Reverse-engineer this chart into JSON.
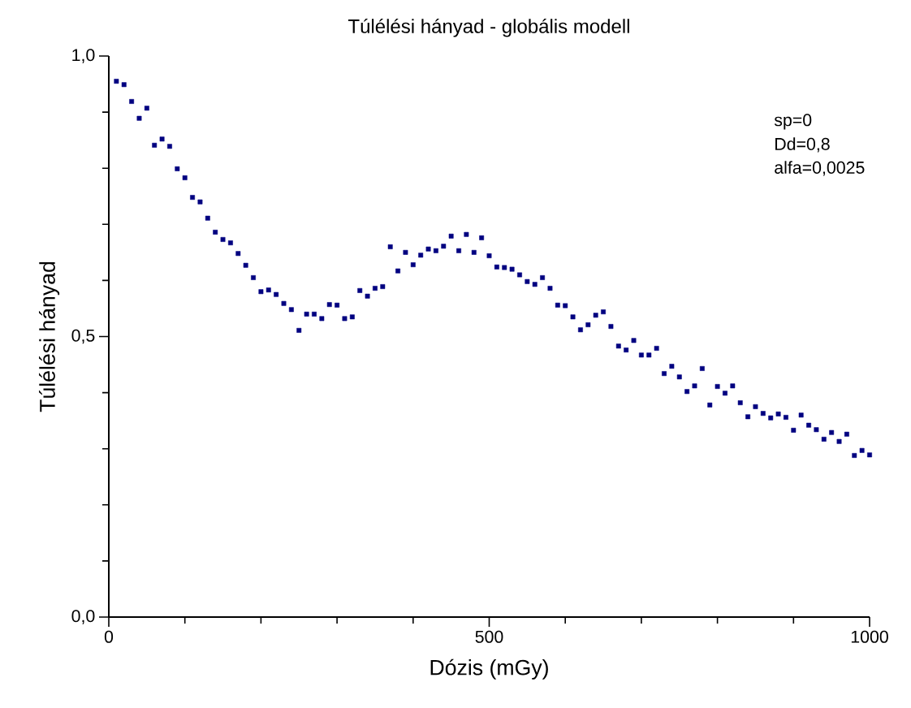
{
  "chart_data": {
    "type": "scatter",
    "title": "Túlélési hányad - globális modell",
    "xlabel": "Dózis (mGy)",
    "ylabel": "Túlélési hányad",
    "annotations": [
      "sp=0",
      "Dd=0,8",
      "alfa=0,0025"
    ],
    "x": [
      10,
      20,
      30,
      40,
      50,
      60,
      70,
      80,
      90,
      100,
      110,
      120,
      130,
      140,
      150,
      160,
      170,
      180,
      190,
      200,
      210,
      220,
      230,
      240,
      250,
      260,
      270,
      280,
      290,
      300,
      310,
      320,
      330,
      340,
      350,
      360,
      370,
      380,
      390,
      400,
      410,
      420,
      430,
      440,
      450,
      460,
      470,
      480,
      490,
      500,
      510,
      520,
      530,
      540,
      550,
      560,
      570,
      580,
      590,
      600,
      610,
      620,
      630,
      640,
      650,
      660,
      670,
      680,
      690,
      700,
      710,
      720,
      730,
      740,
      750,
      760,
      770,
      780,
      790,
      800,
      810,
      820,
      830,
      840,
      850,
      860,
      870,
      880,
      890,
      900,
      910,
      920,
      930,
      940,
      950,
      960,
      970,
      980,
      990,
      1000
    ],
    "series": [
      {
        "color": "#000080",
        "values": [
          0.955,
          0.949,
          0.919,
          0.889,
          0.907,
          0.841,
          0.852,
          0.839,
          0.799,
          0.783,
          0.748,
          0.74,
          0.711,
          0.686,
          0.673,
          0.667,
          0.648,
          0.627,
          0.605,
          0.58,
          0.583,
          0.575,
          0.559,
          0.548,
          0.511,
          0.54,
          0.54,
          0.532,
          0.557,
          0.556,
          0.532,
          0.535,
          0.582,
          0.572,
          0.586,
          0.589,
          0.66,
          0.617,
          0.65,
          0.628,
          0.645,
          0.656,
          0.653,
          0.661,
          0.679,
          0.653,
          0.682,
          0.65,
          0.676,
          0.644,
          0.624,
          0.623,
          0.62,
          0.61,
          0.598,
          0.593,
          0.605,
          0.586,
          0.556,
          0.555,
          0.535,
          0.512,
          0.521,
          0.538,
          0.544,
          0.518,
          0.483,
          0.476,
          0.493,
          0.467,
          0.467,
          0.479,
          0.434,
          0.447,
          0.428,
          0.402,
          0.412,
          0.443,
          0.378,
          0.411,
          0.399,
          0.412,
          0.382,
          0.357,
          0.375,
          0.363,
          0.355,
          0.362,
          0.356,
          0.333,
          0.36,
          0.342,
          0.334,
          0.317,
          0.329,
          0.313,
          0.326,
          0.288,
          0.297,
          0.289
        ]
      }
    ],
    "xlim": [
      0,
      1000
    ],
    "ylim": [
      0,
      1
    ],
    "xticks": [
      0,
      {
        "value": 100,
        "label": null
      },
      {
        "value": 200,
        "label": null
      },
      {
        "value": 300,
        "label": null
      },
      {
        "value": 400,
        "label": null
      },
      500,
      {
        "value": 600,
        "label": null
      },
      {
        "value": 700,
        "label": null
      },
      {
        "value": 800,
        "label": null
      },
      {
        "value": 900,
        "label": null
      },
      1000
    ],
    "yticks": [
      {
        "value": 0,
        "label": "0,0"
      },
      {
        "value": 0.1,
        "label": null
      },
      {
        "value": 0.2,
        "label": null
      },
      {
        "value": 0.3,
        "label": null
      },
      {
        "value": 0.4,
        "label": null
      },
      {
        "value": 0.5,
        "label": "0,5"
      },
      {
        "value": 0.6,
        "label": null
      },
      {
        "value": 0.7,
        "label": null
      },
      {
        "value": 0.8,
        "label": null
      },
      {
        "value": 0.9,
        "label": null
      },
      {
        "value": 1,
        "label": "1,0"
      }
    ],
    "marker": "square",
    "grid": false
  }
}
